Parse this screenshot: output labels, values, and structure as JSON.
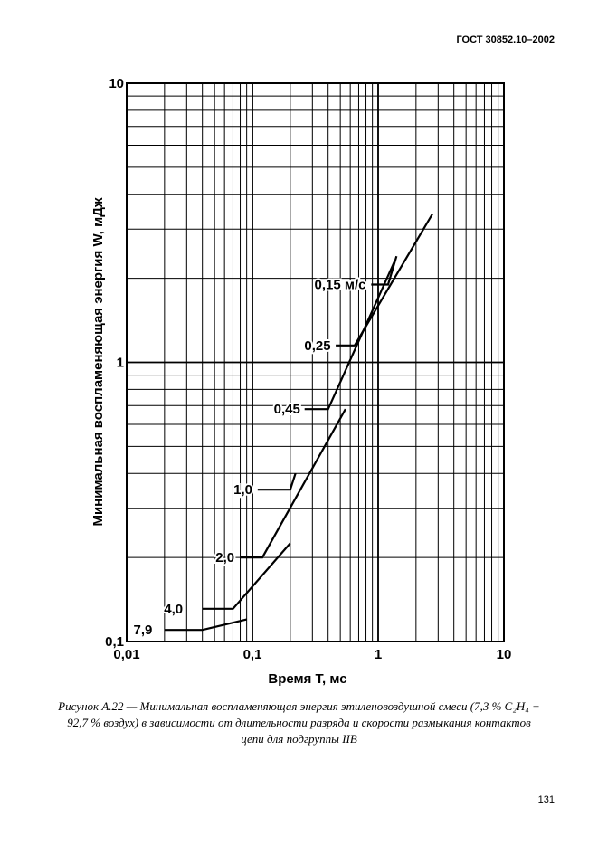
{
  "header": {
    "doc_id": "ГОСТ 30852.10–2002"
  },
  "caption": {
    "text": "Рисунок А.22 — Минимальная воспламеняющая энергия этиленовоздушной смеси (7,3 % C₂H₄ + 92,7 % воздух) в зависимости от длительности разряда и скорости размыкания контактов цепи для подгруппы IIB"
  },
  "page_number": "131",
  "chart_data": {
    "type": "line",
    "xscale": "log",
    "yscale": "log",
    "xlim": [
      0.01,
      10
    ],
    "ylim": [
      0.1,
      10
    ],
    "xlabel": "Время T, мс",
    "ylabel": "Минимальная воспламеняющая энергия W, мДж",
    "x_ticks": [
      {
        "value": 0.01,
        "label": "0,01"
      },
      {
        "value": 0.1,
        "label": "0,1"
      },
      {
        "value": 1,
        "label": "1"
      },
      {
        "value": 10,
        "label": "10"
      }
    ],
    "y_ticks": [
      {
        "value": 0.1,
        "label": "0,1"
      },
      {
        "value": 1,
        "label": "1"
      },
      {
        "value": 10,
        "label": "10"
      }
    ],
    "grid": true,
    "series": [
      {
        "name": "7,9",
        "label_x": 0.016,
        "label_y": 0.11,
        "x": [
          0.02,
          0.04,
          0.09
        ],
        "y": [
          0.11,
          0.11,
          0.12
        ]
      },
      {
        "name": "4,0",
        "label_x": 0.028,
        "label_y": 0.131,
        "x": [
          0.04,
          0.07,
          0.2
        ],
        "y": [
          0.131,
          0.131,
          0.225
        ]
      },
      {
        "name": "2,0",
        "label_x": 0.072,
        "label_y": 0.2,
        "x": [
          0.08,
          0.12,
          0.55
        ],
        "y": [
          0.2,
          0.2,
          0.68
        ]
      },
      {
        "name": "1,0",
        "label_x": 0.1,
        "label_y": 0.35,
        "x": [
          0.11,
          0.2,
          0.22
        ],
        "y": [
          0.35,
          0.35,
          0.4
        ]
      },
      {
        "name": "0,45",
        "label_x": 0.24,
        "label_y": 0.68,
        "x": [
          0.26,
          0.4,
          1.35
        ],
        "y": [
          0.68,
          0.68,
          2.3
        ]
      },
      {
        "name": "0,25",
        "label_x": 0.42,
        "label_y": 1.15,
        "x": [
          0.46,
          0.65,
          2.7
        ],
        "y": [
          1.15,
          1.15,
          3.4
        ]
      },
      {
        "name": "0,15 м/с",
        "label_x": 0.8,
        "label_y": 1.9,
        "x": [
          0.88,
          1.2,
          1.4
        ],
        "y": [
          1.9,
          1.9,
          2.4
        ]
      }
    ]
  }
}
